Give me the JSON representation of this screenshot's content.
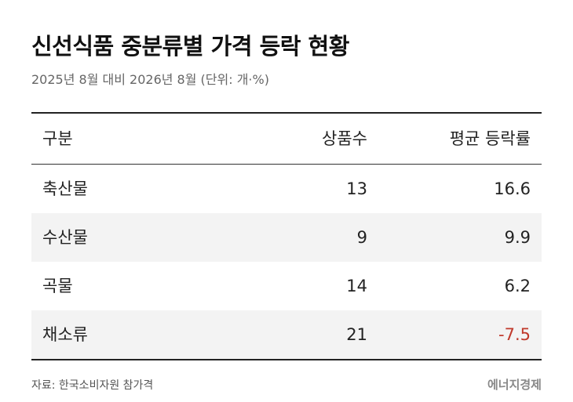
{
  "chart_data": {
    "type": "table",
    "title": "신선식품 중분류별 가격 등락 현황",
    "subtitle": "2025년 8월 대비 2026년 8월 (단위: 개·%)",
    "columns": [
      "구분",
      "상품수",
      "평균 등락률"
    ],
    "rows": [
      {
        "category": "축산물",
        "count": "13",
        "avg_change": "16.6"
      },
      {
        "category": "수산물",
        "count": "9",
        "avg_change": "9.9"
      },
      {
        "category": "곡물",
        "count": "14",
        "avg_change": "6.2"
      },
      {
        "category": "채소류",
        "count": "21",
        "avg_change": "-7.5"
      }
    ],
    "source": "자료: 한국소비자원 참가격",
    "brand": "에너지경제"
  },
  "colors": {
    "text": "#222222",
    "negative": "#c0392b",
    "row_shade": "#f3f3f3",
    "rule": "#222222"
  }
}
